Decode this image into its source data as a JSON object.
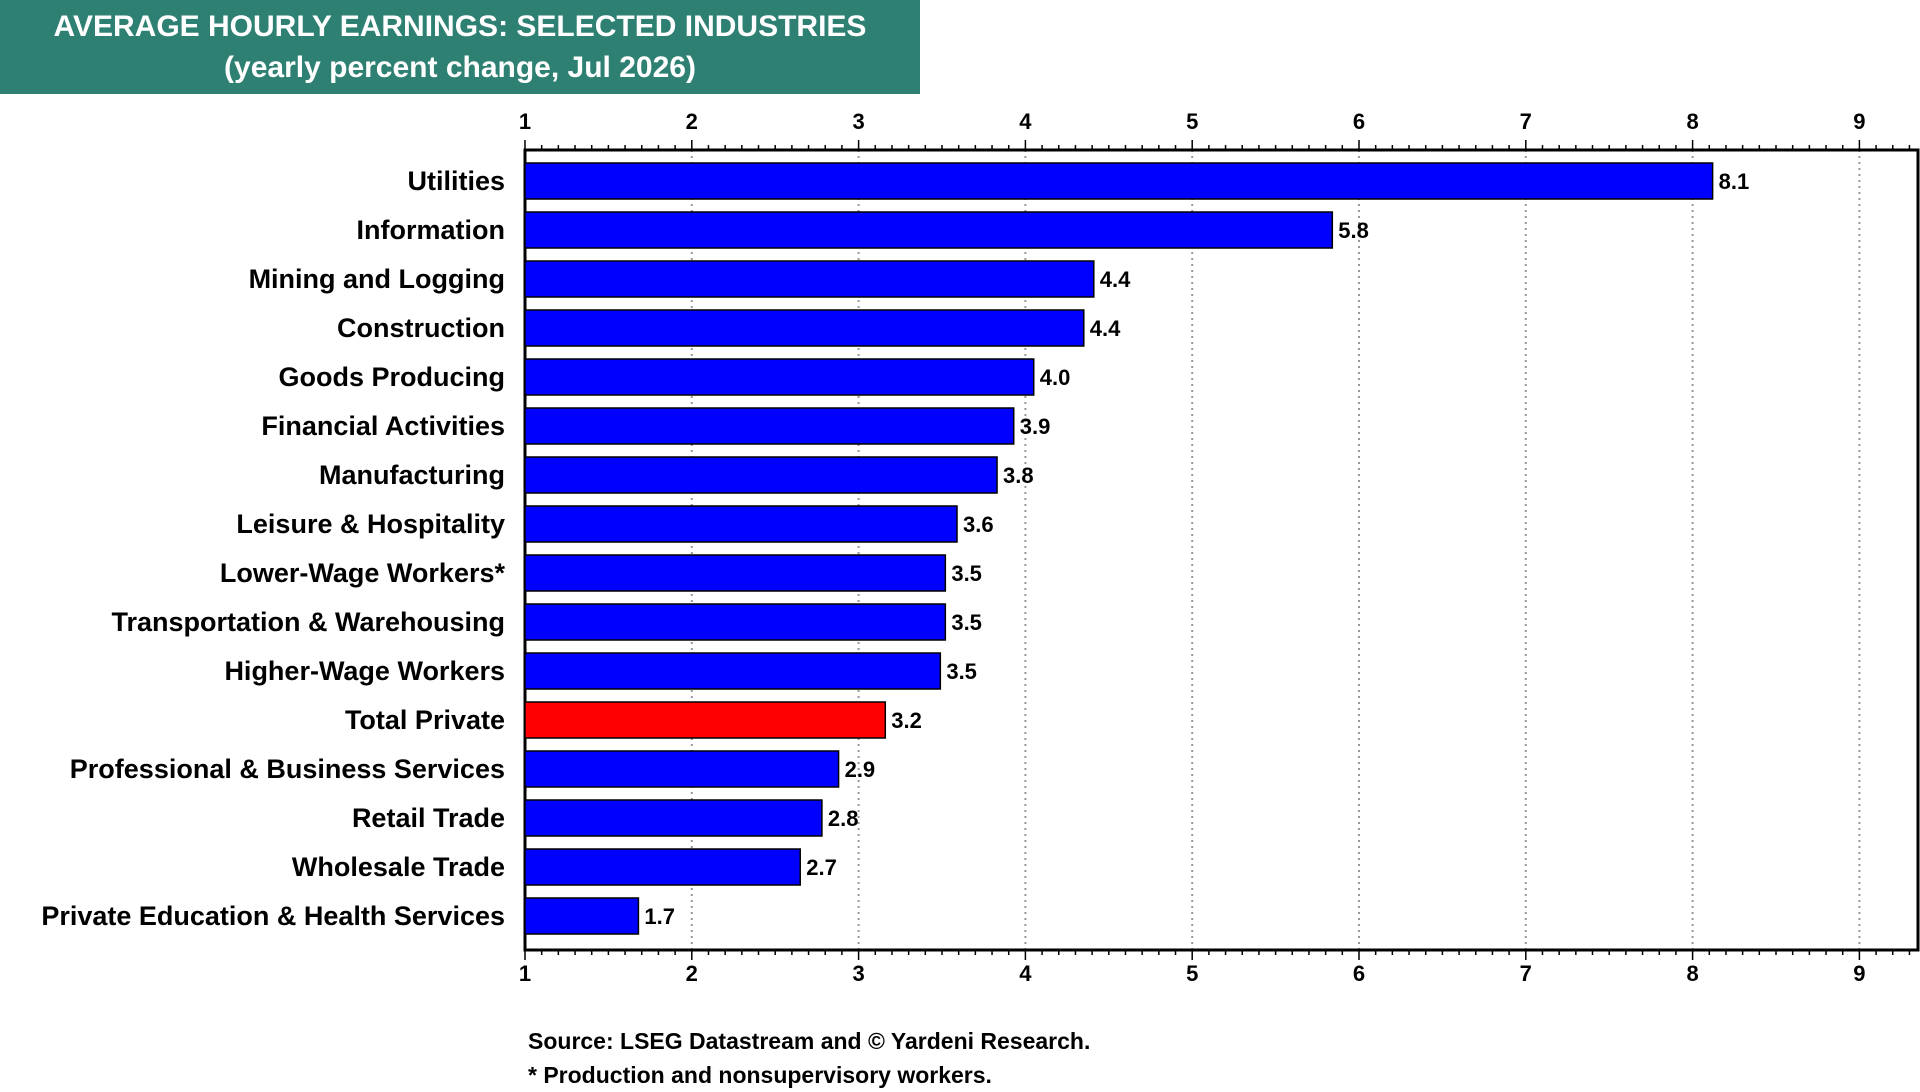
{
  "chart_data": {
    "type": "bar",
    "orientation": "horizontal",
    "title": "AVERAGE HOURLY EARNINGS: SELECTED INDUSTRIES",
    "subtitle": "(yearly percent change, Jul 2026)",
    "categories": [
      "Utilities",
      "Information",
      "Mining and Logging",
      "Construction",
      "Goods Producing",
      "Financial Activities",
      "Manufacturing",
      "Leisure & Hospitality",
      "Lower-Wage Workers*",
      "Transportation & Warehousing",
      "Higher-Wage Workers",
      "Total Private",
      "Professional & Business Services",
      "Retail Trade",
      "Wholesale Trade",
      "Private Education & Health Services"
    ],
    "values": [
      8.1,
      5.8,
      4.4,
      4.4,
      4.0,
      3.9,
      3.8,
      3.6,
      3.5,
      3.5,
      3.5,
      3.2,
      2.9,
      2.8,
      2.7,
      1.7
    ],
    "value_labels": [
      "8.1",
      "5.8",
      "4.4",
      "4.4",
      "4.0",
      "3.9",
      "3.8",
      "3.6",
      "3.5",
      "3.5",
      "3.5",
      "3.2",
      "2.9",
      "2.8",
      "2.7",
      "1.7"
    ],
    "bar_values": [
      8.12,
      5.84,
      4.41,
      4.35,
      4.05,
      3.93,
      3.83,
      3.59,
      3.52,
      3.52,
      3.49,
      3.16,
      2.88,
      2.78,
      2.65,
      1.68
    ],
    "highlight_category": "Total Private",
    "xlim": [
      1,
      9.4
    ],
    "xticks": [
      "1",
      "2",
      "3",
      "4",
      "5",
      "6",
      "7",
      "8",
      "9"
    ],
    "grid": "vertical dotted at major ticks",
    "legend": "none",
    "colors": {
      "bar": "#0000ff",
      "highlight": "#ff0000",
      "title_bg": "#2e8072",
      "title_text": "#ffffff",
      "grid": "#999999"
    }
  },
  "notes": {
    "source": "Source: LSEG Datastream and © Yardeni Research.",
    "footnote": "* Production and nonsupervisory workers."
  }
}
